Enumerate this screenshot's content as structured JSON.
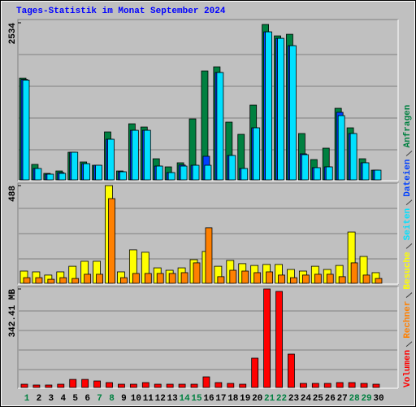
{
  "chart_data": [
    {
      "type": "bar",
      "title": "Tages-Statistik im Monat September 2024",
      "ylim": [
        0,
        2534
      ],
      "yticks": [
        2534
      ],
      "series": [
        {
          "name": "Anfragen",
          "color": "#008040",
          "values": [
            1640,
            250,
            105,
            144,
            446,
            289,
            236,
            774,
            144,
            905,
            853,
            341,
            210,
            276,
            984,
            1758,
            1824,
            932,
            735,
            1207,
            2507,
            2323,
            2349,
            748,
            328,
            512,
            1155,
            840,
            341,
            157
          ]
        },
        {
          "name": "Dateien",
          "color": "#0040FF",
          "values": [
            1620,
            184,
            92,
            118,
            446,
            262,
            236,
            656,
            131,
            800,
            800,
            223,
            118,
            240,
            236,
            381,
            1732,
            394,
            184,
            840,
            2388,
            2283,
            2165,
            420,
            197,
            210,
            1090,
            748,
            276,
            157
          ]
        },
        {
          "name": "Seiten",
          "color": "#00E0FF",
          "values": [
            1610,
            184,
            92,
            105,
            446,
            262,
            236,
            656,
            131,
            800,
            800,
            223,
            118,
            223,
            236,
            236,
            1732,
            394,
            184,
            840,
            2388,
            2283,
            2165,
            407,
            197,
            210,
            1037,
            748,
            276,
            157
          ]
        }
      ]
    },
    {
      "type": "bar",
      "ylim": [
        0,
        488
      ],
      "yticks": [
        488
      ],
      "series": [
        {
          "name": "Besuche",
          "color": "#FFFF00",
          "values": [
            61,
            57,
            41,
            57,
            85,
            110,
            110,
            488,
            57,
            167,
            155,
            77,
            65,
            77,
            118,
            159,
            85,
            114,
            98,
            89,
            94,
            94,
            69,
            61,
            85,
            69,
            89,
            256,
            134,
            53
          ]
        },
        {
          "name": "Rechner",
          "color": "#FF8000",
          "values": [
            28,
            28,
            20,
            28,
            24,
            45,
            45,
            423,
            28,
            49,
            49,
            49,
            49,
            53,
            102,
            277,
            33,
            65,
            61,
            53,
            57,
            41,
            28,
            41,
            45,
            45,
            33,
            102,
            41,
            24
          ]
        }
      ]
    },
    {
      "type": "bar",
      "ylim": [
        0,
        342.41
      ],
      "yticks": [
        {
          "value": 342.41,
          "label": "342.41 MB"
        }
      ],
      "categories": [
        "1",
        "2",
        "3",
        "4",
        "5",
        "6",
        "7",
        "8",
        "9",
        "10",
        "11",
        "12",
        "13",
        "14",
        "15",
        "16",
        "17",
        "18",
        "19",
        "20",
        "21",
        "22",
        "23",
        "24",
        "25",
        "26",
        "27",
        "28",
        "29",
        "30"
      ],
      "category_colors": [
        "#008040",
        "#000000",
        "#000000",
        "#000000",
        "#000000",
        "#000000",
        "#008040",
        "#008040",
        "#000000",
        "#000000",
        "#000000",
        "#000000",
        "#000000",
        "#008040",
        "#008040",
        "#000000",
        "#000000",
        "#000000",
        "#000000",
        "#000000",
        "#008040",
        "#008040",
        "#000000",
        "#000000",
        "#000000",
        "#000000",
        "#000000",
        "#008040",
        "#008040",
        "#000000"
      ],
      "series": [
        {
          "name": "Volumen",
          "color": "#FF0000",
          "values": [
            11.3,
            8.5,
            8.5,
            11.3,
            28,
            28,
            22.6,
            17,
            11.3,
            11.3,
            17,
            11.3,
            11.3,
            11.3,
            11.3,
            36.8,
            17,
            14.1,
            11.3,
            101.9,
            342.41,
            333.9,
            116,
            14.1,
            14.1,
            14.1,
            17,
            17,
            14.1,
            11.3
          ]
        }
      ]
    }
  ]
}
